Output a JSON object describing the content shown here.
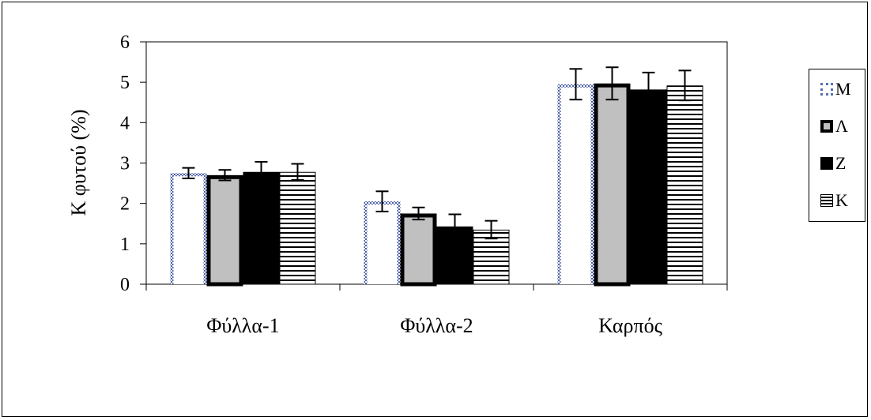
{
  "chart_data": {
    "type": "bar",
    "title": "",
    "xlabel": "",
    "ylabel": "K φυτού (%)",
    "ylim": [
      0,
      6
    ],
    "yticks": [
      "0",
      "1",
      "2",
      "3",
      "4",
      "5",
      "6"
    ],
    "categories": [
      "Φύλλα-1",
      "Φύλλα-2",
      "Καρπός"
    ],
    "series": [
      {
        "name": "M",
        "values": [
          2.75,
          2.05,
          4.95
        ],
        "errors": [
          0.13,
          0.25,
          0.38
        ],
        "style": "dotted-outline",
        "color": "#5a6fb0"
      },
      {
        "name": "Λ",
        "values": [
          2.7,
          1.75,
          4.97
        ],
        "errors": [
          0.13,
          0.15,
          0.4
        ],
        "style": "gray-thick-outline",
        "color": "#c0c0c0"
      },
      {
        "name": "Z",
        "values": [
          2.78,
          1.43,
          4.82
        ],
        "errors": [
          0.25,
          0.3,
          0.42
        ],
        "style": "solid-black",
        "color": "#000000"
      },
      {
        "name": "K",
        "values": [
          2.78,
          1.35,
          4.92
        ],
        "errors": [
          0.2,
          0.22,
          0.37
        ],
        "style": "horizontal-stripes",
        "color": "#000000"
      }
    ],
    "grid": false,
    "legend_position": "right"
  }
}
